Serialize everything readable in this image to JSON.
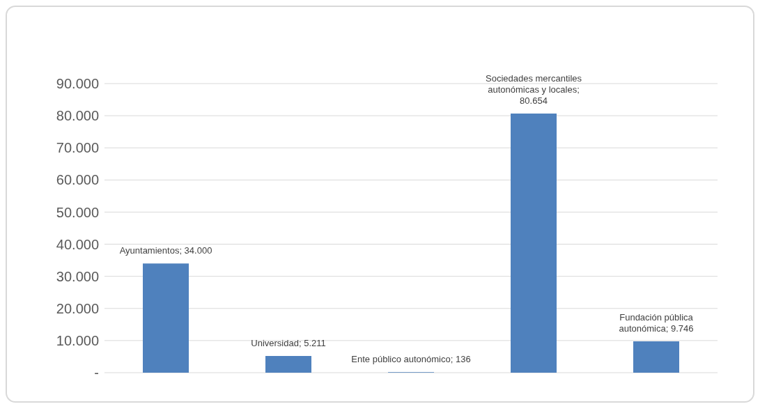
{
  "chart_data": {
    "type": "bar",
    "categories": [
      null,
      null,
      null,
      null,
      null
    ],
    "values": [
      34000,
      5211,
      136,
      80654,
      9746
    ],
    "color": "#4f81bd",
    "value_labels": [
      "Ayuntamientos; 34.000",
      "Universidad; 5.211",
      "Ente público autonómico; 136",
      "Sociedades mercantiles autonómicas y locales; 80.654",
      "Fundación pública autonómica; 9.746"
    ],
    "ylim": [
      0,
      90000
    ],
    "yticks": [
      {
        "value": 0,
        "label": "-"
      },
      {
        "value": 10000,
        "label": "10.000"
      },
      {
        "value": 20000,
        "label": "20.000"
      },
      {
        "value": 30000,
        "label": "30.000"
      },
      {
        "value": 40000,
        "label": "40.000"
      },
      {
        "value": 50000,
        "label": "50.000"
      },
      {
        "value": 60000,
        "label": "60.000"
      },
      {
        "value": 70000,
        "label": "70.000"
      },
      {
        "value": 80000,
        "label": "80.000"
      },
      {
        "value": 90000,
        "label": "90.000"
      }
    ],
    "grid": "y"
  }
}
